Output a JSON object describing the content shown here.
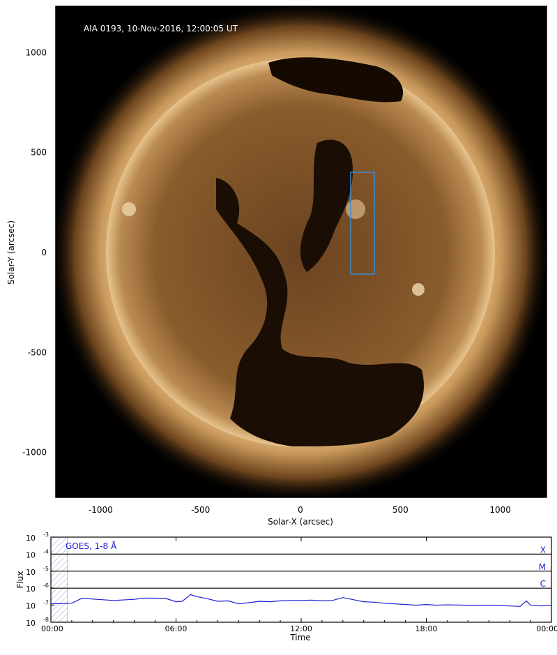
{
  "image_panel": {
    "title": "AIA 0193, 10-Nov-2016, 12:00:05 UT",
    "xlabel": "Solar-X (arcsec)",
    "ylabel": "Solar-Y (arcsec)",
    "xticks": [
      "-1000",
      "-500",
      "0",
      "500",
      "1000"
    ],
    "yticks": [
      "1000",
      "500",
      "0",
      "-500",
      "-1000"
    ],
    "box_color": "#3a8bd6",
    "disk_color": "#8a5a2a",
    "corona_color": "#d9b07a",
    "coronal_hole_color": "#140a02"
  },
  "chart_data": {
    "type": "line",
    "title": "",
    "xlabel": "Time",
    "ylabel": "Flux",
    "series": [
      {
        "name": "GOES, 1-8 Å",
        "color": "#1c1cd6",
        "x_hours": [
          0,
          1.0,
          1.5,
          2.0,
          3.0,
          4.0,
          4.5,
          5.0,
          5.5,
          6.0,
          6.3,
          6.7,
          7.0,
          7.5,
          8.0,
          8.5,
          9.0,
          9.5,
          10.0,
          10.5,
          11.0,
          11.5,
          12.0,
          12.5,
          13.0,
          13.5,
          14.0,
          14.5,
          15.0,
          15.5,
          16.0,
          16.5,
          17.0,
          17.5,
          18.0,
          18.5,
          19.0,
          20.0,
          21.0,
          22.0,
          22.5,
          22.8,
          23.0,
          23.5,
          24.0
        ],
        "values": [
          1.2e-07,
          1.3e-07,
          2.6e-07,
          2.3e-07,
          1.9e-07,
          2.2e-07,
          2.6e-07,
          2.6e-07,
          2.5e-07,
          1.6e-07,
          1.7e-07,
          4.2e-07,
          3.2e-07,
          2.4e-07,
          1.7e-07,
          1.8e-07,
          1.2e-07,
          1.4e-07,
          1.7e-07,
          1.6e-07,
          1.8e-07,
          1.9e-07,
          1.9e-07,
          2e-07,
          1.8e-07,
          1.9e-07,
          2.8e-07,
          2.1e-07,
          1.6e-07,
          1.5e-07,
          1.3e-07,
          1.2e-07,
          1.1e-07,
          1e-07,
          1.1e-07,
          1e-07,
          1.05e-07,
          1e-07,
          1e-07,
          9e-08,
          8.5e-08,
          1.8e-07,
          1e-07,
          9e-08,
          1e-07
        ]
      }
    ],
    "xtick_labels": [
      "00:00",
      "06:00",
      "12:00",
      "18:00",
      "00:00"
    ],
    "xlim_hours": [
      0,
      24
    ],
    "ylim": [
      1e-08,
      0.001
    ],
    "yscale": "log",
    "ytick_labels": [
      {
        "base": "10",
        "exp": "-3"
      },
      {
        "base": "10",
        "exp": "-4"
      },
      {
        "base": "10",
        "exp": "-5"
      },
      {
        "base": "10",
        "exp": "-6"
      },
      {
        "base": "10",
        "exp": "-7"
      },
      {
        "base": "10",
        "exp": "-8"
      }
    ],
    "flare_class_lines": [
      {
        "label": "X",
        "level": 0.0001
      },
      {
        "label": "M",
        "level": 1e-05
      },
      {
        "label": "C",
        "level": 1e-06
      }
    ],
    "shaded_region_hours": [
      0,
      0.8
    ]
  }
}
